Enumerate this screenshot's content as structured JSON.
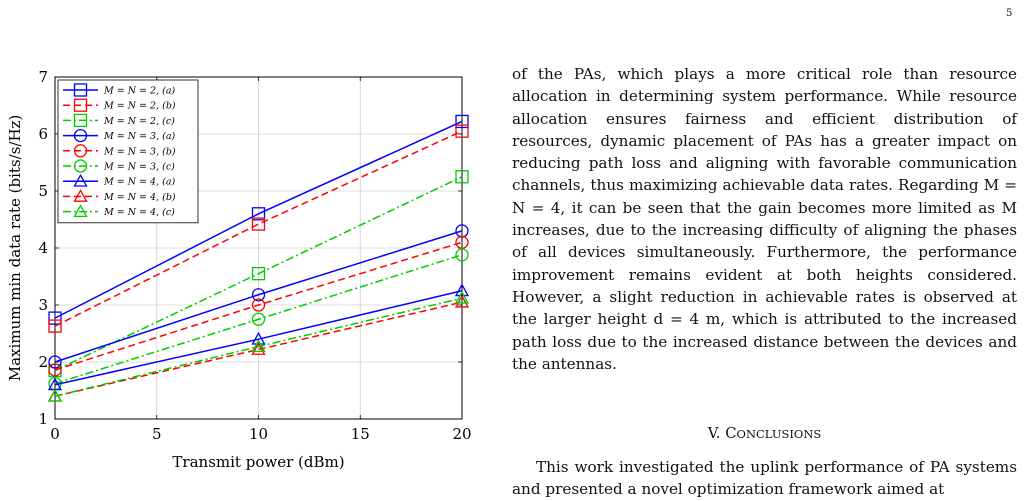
{
  "page_number": "5",
  "paragraph1": "of the PAs, which plays a more critical role than resource allocation in determining system performance. While resource allocation ensures fairness and efficient distribution of resources, dynamic placement of PAs has a greater impact on reducing path loss and aligning with favorable communication channels, thus maximizing achievable data rates. Regarding M = N = 4, it can be seen that the gain becomes more limited as M increases, due to the increasing difficulty of aligning the phases of all devices simultaneously. Furthermore, the performance improvement remains evident at both heights considered. However, a slight reduction in achievable rates is observed at the larger height d = 4 m, which is attributed to the increased path loss due to the increased distance between the devices and the antennas.",
  "section_title": {
    "prefix": "V. C",
    "rest": "ONCLUSIONS"
  },
  "paragraph2": "This work investigated the uplink performance of PA systems and presented a novel optimization framework aimed at",
  "chart_data": {
    "type": "line",
    "xlabel": "Transmit power (dBm)",
    "ylabel": "Maximum min data rate (bits/s/Hz)",
    "xlim": [
      0,
      20
    ],
    "ylim": [
      1,
      7
    ],
    "xticks": [
      0,
      5,
      10,
      15,
      20
    ],
    "yticks": [
      1,
      2,
      3,
      4,
      5,
      6,
      7
    ],
    "grid": true,
    "legend_position": "top-left",
    "x": [
      0,
      10,
      20
    ],
    "series": [
      {
        "name": "M = N = 2, (a)",
        "values": [
          2.77,
          4.6,
          6.22
        ],
        "color": "#0000ff",
        "dash": "solid",
        "marker": "square"
      },
      {
        "name": "M = N = 2, (b)",
        "values": [
          2.63,
          4.42,
          6.05
        ],
        "color": "#ff0000",
        "dash": "dashed",
        "marker": "square"
      },
      {
        "name": "M = N = 2, (c)",
        "values": [
          1.85,
          3.55,
          5.25
        ],
        "color": "#00cc00",
        "dash": "dashdot",
        "marker": "square"
      },
      {
        "name": "M = N = 3, (a)",
        "values": [
          2.0,
          3.18,
          4.3
        ],
        "color": "#0000ff",
        "dash": "solid",
        "marker": "circle"
      },
      {
        "name": "M = N = 3, (b)",
        "values": [
          1.86,
          3.0,
          4.1
        ],
        "color": "#ff0000",
        "dash": "dashed",
        "marker": "circle"
      },
      {
        "name": "M = N = 3, (c)",
        "values": [
          1.62,
          2.75,
          3.88
        ],
        "color": "#00cc00",
        "dash": "dashdot",
        "marker": "circle"
      },
      {
        "name": "M = N = 4, (a)",
        "values": [
          1.6,
          2.4,
          3.25
        ],
        "color": "#0000ff",
        "dash": "solid",
        "marker": "triangle"
      },
      {
        "name": "M = N = 4, (b)",
        "values": [
          1.4,
          2.22,
          3.05
        ],
        "color": "#ff0000",
        "dash": "dashed",
        "marker": "triangle"
      },
      {
        "name": "M = N = 4, (c)",
        "values": [
          1.4,
          2.27,
          3.12
        ],
        "color": "#00cc00",
        "dash": "dashdot",
        "marker": "triangle"
      }
    ]
  }
}
